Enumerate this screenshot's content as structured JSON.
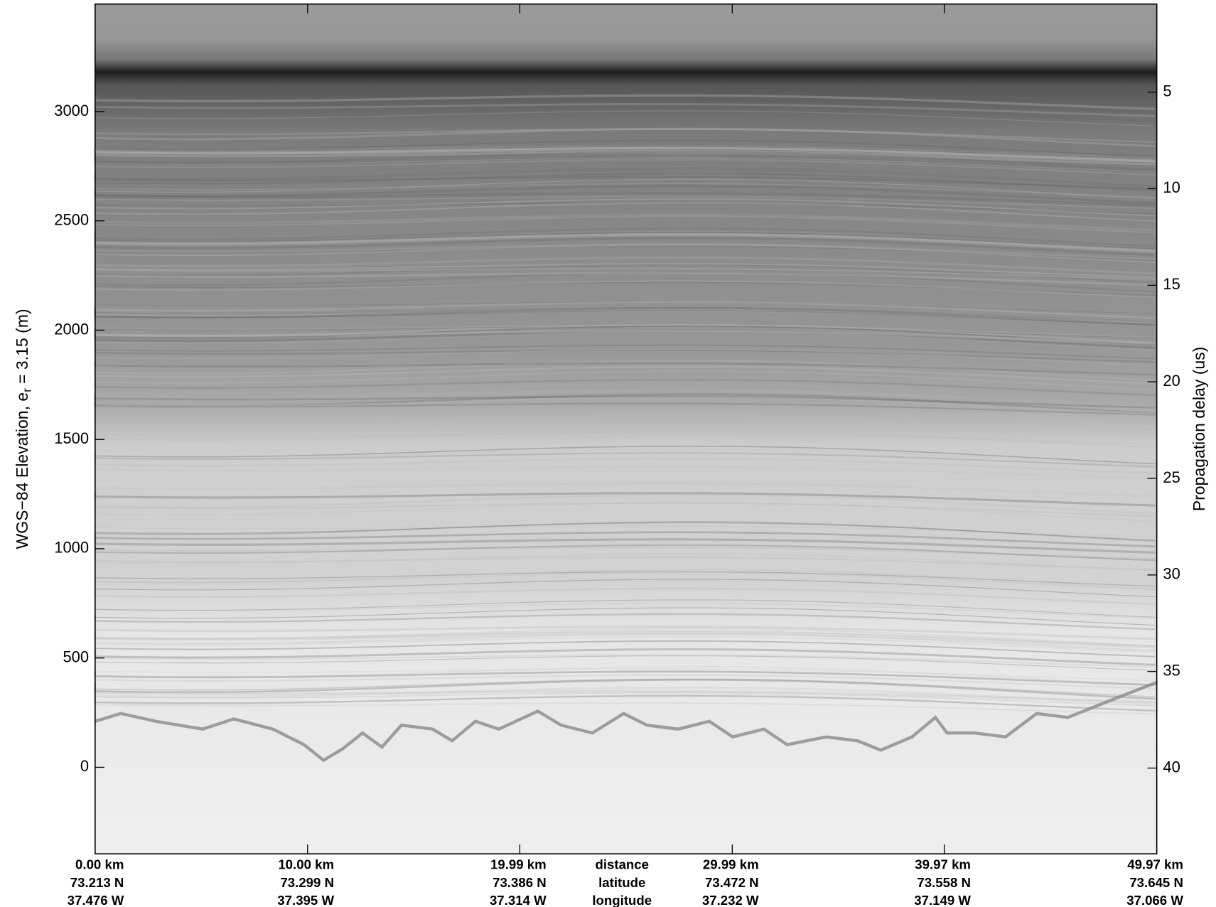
{
  "chart_data": {
    "type": "radargram",
    "ylabel": "WGS−84 Elevation, e",
    "ylabel_sub": "r",
    "ylabel_rest": " = 3.15 (m)",
    "y2label": "Propagation delay (us)",
    "ylim": [
      -396,
      3492
    ],
    "yticks": [
      0,
      500,
      1000,
      1500,
      2000,
      2500,
      3000
    ],
    "y2lim": [
      44.44,
      0.44
    ],
    "y2ticks": [
      5,
      10,
      15,
      20,
      25,
      30,
      35,
      40
    ],
    "xlim": [
      0,
      49.97
    ],
    "xticks": [
      {
        "value": 0,
        "label": "0.00 km"
      },
      {
        "value": 10,
        "label": "10.00 km"
      },
      {
        "value": 19.99,
        "label": "19.99 km"
      },
      {
        "value": 29.99,
        "label": "29.99 km"
      },
      {
        "value": 39.97,
        "label": "39.97 km"
      },
      {
        "value": 49.97,
        "label": "49.97 km"
      }
    ],
    "xtick_latitude": [
      "73.213 N",
      "73.299 N",
      "73.386 N",
      "73.472 N",
      "73.558 N",
      "73.645 N"
    ],
    "xtick_longitude": [
      "37.476 W",
      "37.395 W",
      "37.314 W",
      "37.232 W",
      "37.149 W",
      "37.066 W"
    ],
    "xtick_row_names": [
      "distance",
      "latitude",
      "longitude"
    ]
  }
}
